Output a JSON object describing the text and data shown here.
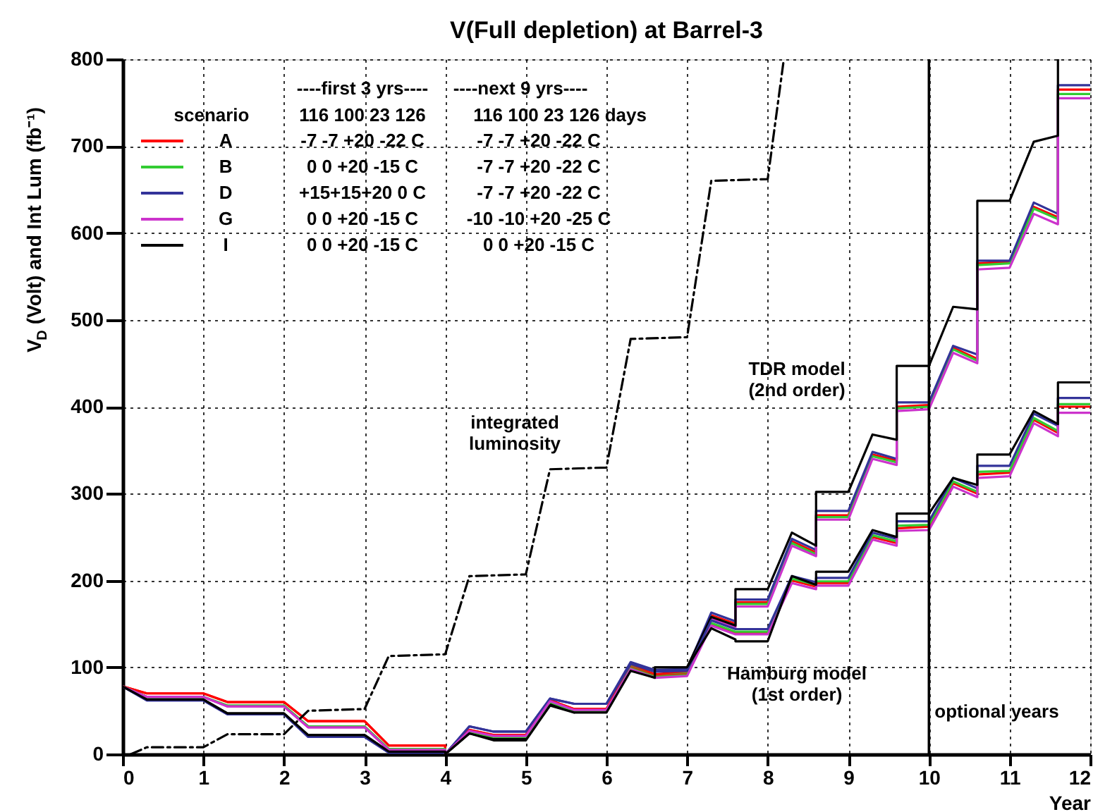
{
  "chart_data": {
    "type": "line",
    "title": "V(Full depletion) at Barrel-3",
    "xlabel": "Year",
    "ylabel": "V$_{D}$ (Volt) and  Int Lum (fb⁻¹)",
    "xlim": [
      0,
      12
    ],
    "xticks": [
      0,
      1,
      2,
      3,
      4,
      5,
      6,
      7,
      8,
      9,
      10,
      11,
      12
    ],
    "ylim": [
      0,
      800
    ],
    "yticks": [
      0,
      100,
      200,
      300,
      400,
      500,
      600,
      700,
      800
    ],
    "grid": true,
    "legend": "top left",
    "line_style": "solid",
    "marker": "none",
    "x": [
      0,
      0.3,
      1.0,
      1.3,
      2.0,
      2.3,
      3.0,
      3.3,
      4.0,
      4.0,
      4.3,
      4.6,
      4.6,
      5.0,
      5.3,
      5.6,
      5.6,
      6.0,
      6.3,
      6.6,
      6.6,
      7.0,
      7.3,
      7.6,
      7.6,
      8.0,
      8.3,
      8.6,
      8.6,
      9.0,
      9.3,
      9.6,
      9.6,
      10.0,
      10.3,
      10.6,
      10.6,
      11.0,
      11.3,
      11.6,
      11.6,
      12.0
    ],
    "series": [
      {
        "name": "A",
        "color": "#ff0000",
        "values": [
          78,
          70,
          70,
          60,
          60,
          38,
          38,
          10,
          10,
          0,
          28,
          22,
          22,
          22,
          62,
          52,
          52,
          52,
          103,
          92,
          92,
          95,
          160,
          150,
          175,
          175,
          245,
          232,
          275,
          275,
          345,
          338,
          400,
          402,
          468,
          455,
          565,
          567,
          630,
          618,
          765,
          765
        ]
      },
      {
        "name": "B",
        "color": "#33cc33",
        "values": [
          78,
          66,
          66,
          56,
          56,
          32,
          32,
          6,
          6,
          0,
          26,
          20,
          20,
          20,
          60,
          50,
          50,
          50,
          101,
          90,
          90,
          93,
          158,
          148,
          173,
          173,
          243,
          230,
          273,
          273,
          343,
          336,
          398,
          400,
          466,
          453,
          563,
          565,
          628,
          616,
          760,
          760
        ]
      },
      {
        "name": "D",
        "color": "#333399",
        "values": [
          78,
          62,
          62,
          46,
          46,
          20,
          20,
          2,
          2,
          0,
          32,
          26,
          26,
          26,
          64,
          58,
          58,
          58,
          106,
          97,
          97,
          98,
          163,
          153,
          178,
          178,
          248,
          235,
          280,
          280,
          348,
          340,
          405,
          405,
          470,
          460,
          568,
          568,
          635,
          622,
          770,
          770
        ]
      },
      {
        "name": "G",
        "color": "#cc33cc",
        "values": [
          78,
          66,
          66,
          55,
          55,
          31,
          31,
          5,
          5,
          0,
          27,
          21,
          21,
          21,
          61,
          51,
          51,
          51,
          100,
          89,
          89,
          91,
          156,
          146,
          170,
          170,
          240,
          228,
          270,
          270,
          340,
          333,
          395,
          397,
          462,
          450,
          558,
          560,
          622,
          610,
          755,
          755
        ]
      },
      {
        "name": "I",
        "color": "#000000",
        "values": [
          78,
          63,
          63,
          47,
          47,
          22,
          22,
          3,
          3,
          0,
          24,
          18,
          18,
          18,
          58,
          48,
          50,
          50,
          98,
          88,
          100,
          100,
          158,
          148,
          190,
          190,
          255,
          240,
          302,
          302,
          368,
          362,
          447,
          447,
          515,
          512,
          637,
          637,
          705,
          712,
          800,
          null
        ]
      },
      {
        "color": "#ff0000",
        "values": [
          78,
          70,
          70,
          60,
          60,
          38,
          38,
          10,
          10,
          0,
          28,
          22,
          22,
          22,
          62,
          52,
          52,
          52,
          100,
          90,
          90,
          92,
          150,
          140,
          140,
          140,
          200,
          193,
          197,
          197,
          250,
          243,
          260,
          262,
          312,
          300,
          322,
          324,
          385,
          370,
          400,
          400
        ]
      },
      {
        "color": "#33cc33",
        "values": [
          78,
          66,
          66,
          56,
          56,
          32,
          32,
          6,
          6,
          0,
          26,
          20,
          20,
          20,
          60,
          50,
          50,
          50,
          99,
          89,
          89,
          91,
          151,
          141,
          141,
          141,
          202,
          195,
          199,
          199,
          252,
          245,
          263,
          264,
          314,
          302,
          325,
          326,
          387,
          372,
          403,
          403
        ]
      },
      {
        "color": "#333399",
        "values": [
          78,
          62,
          62,
          46,
          46,
          20,
          20,
          2,
          2,
          0,
          32,
          26,
          26,
          26,
          64,
          58,
          58,
          58,
          104,
          95,
          95,
          96,
          154,
          144,
          144,
          144,
          205,
          198,
          203,
          203,
          255,
          248,
          268,
          268,
          318,
          306,
          332,
          332,
          392,
          378,
          410,
          410
        ]
      },
      {
        "color": "#cc33cc",
        "values": [
          78,
          66,
          66,
          55,
          55,
          31,
          31,
          5,
          5,
          0,
          27,
          21,
          21,
          21,
          61,
          51,
          51,
          51,
          98,
          88,
          88,
          90,
          148,
          138,
          138,
          138,
          197,
          190,
          194,
          194,
          247,
          240,
          257,
          258,
          308,
          296,
          318,
          320,
          381,
          366,
          393,
          393
        ]
      },
      {
        "color": "#000000",
        "values": [
          78,
          63,
          63,
          47,
          47,
          22,
          22,
          3,
          3,
          0,
          24,
          16,
          16,
          16,
          56,
          48,
          48,
          48,
          96,
          88,
          100,
          100,
          145,
          132,
          130,
          130,
          205,
          195,
          210,
          210,
          258,
          250,
          277,
          277,
          318,
          310,
          345,
          345,
          395,
          380,
          428,
          428
        ]
      },
      {
        "color": "#000000",
        "line_style": "dashed",
        "x": [
          0.1,
          0.3,
          1.0,
          1.3,
          2.0,
          2.3,
          3.0,
          3.3,
          4.0,
          4.3,
          5.0,
          5.3,
          6.0,
          6.3,
          7.0,
          7.3,
          8.0,
          8.2
        ],
        "values": [
          0,
          8,
          8,
          23,
          23,
          50,
          52,
          113,
          115,
          205,
          207,
          328,
          330,
          478,
          480,
          660,
          662,
          800
        ]
      }
    ],
    "ref_lines": [
      {
        "axis": "x",
        "value": 10,
        "label": "optional years",
        "color": "#000000"
      }
    ],
    "annotations": [
      "----first 3 yrs----",
      "----next 9 yrs----",
      "scenario",
      "116 100  23 126",
      "116 100  23 126 days",
      "-7 -7 +20 -22 C",
      "0 0 +20 -15 C",
      "+15+15+20 0 C",
      "0 0 +20 -15 C",
      "0 0 +20 -15 C",
      "-7 -7 +20 -22 C",
      "-7 -7 +20 -22 C",
      "-7 -7 +20 -22 C",
      "-10 -10 +20 -25 C",
      "0 0 +20 -15 C",
      "integrated\nluminosity",
      "TDR model\n(2nd order)",
      "Hamburg model\n(1st order)"
    ]
  }
}
